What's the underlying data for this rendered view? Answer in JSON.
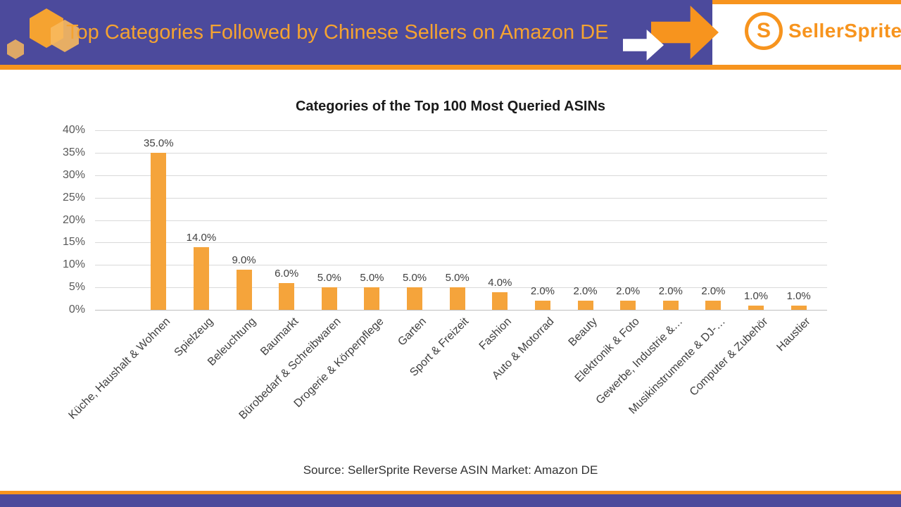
{
  "header": {
    "title": "Top Categories Followed by Chinese Sellers on Amazon DE",
    "brand": "SellerSprite",
    "logo_letter": "S"
  },
  "colors": {
    "banner": "#4C4A9C",
    "accent": "#F7941E",
    "bar": "#F5A43B",
    "grid": "#D9D9D9"
  },
  "chart_data": {
    "type": "bar",
    "title": "Categories of the Top 100 Most Queried ASINs",
    "categories": [
      "Küche, Haushalt & Wohnen",
      "Spielzeug",
      "Beleuchtung",
      "Baumarkt",
      "Bürobedarf & Schreibwaren",
      "Drogerie & Körperpflege",
      "Garten",
      "Sport & Freizeit",
      "Fashion",
      "Auto & Motorrad",
      "Beauty",
      "Elektronik & Foto",
      "Gewerbe, Industrie &…",
      "Musikinstrumente & DJ-…",
      "Computer & Zubehör",
      "Haustier"
    ],
    "values": [
      35,
      14,
      9,
      6,
      5,
      5,
      5,
      5,
      4,
      2,
      2,
      2,
      2,
      2,
      1,
      1
    ],
    "value_labels": [
      "35.0%",
      "14.0%",
      "9.0%",
      "6.0%",
      "5.0%",
      "5.0%",
      "5.0%",
      "5.0%",
      "4.0%",
      "2.0%",
      "2.0%",
      "2.0%",
      "2.0%",
      "2.0%",
      "1.0%",
      "1.0%"
    ],
    "xlabel": "",
    "ylabel": "",
    "ylim": [
      0,
      40
    ],
    "ytick_step": 5,
    "ytick_labels": [
      "0%",
      "5%",
      "10%",
      "15%",
      "20%",
      "25%",
      "30%",
      "35%",
      "40%"
    ],
    "grid": true,
    "legend": "none",
    "bar_color": "#F5A43B"
  },
  "footer": {
    "source": "Source: SellerSprite Reverse ASIN  Market: Amazon DE"
  }
}
